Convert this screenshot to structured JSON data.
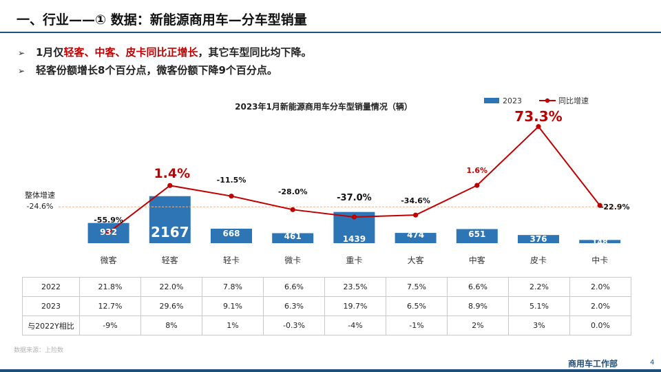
{
  "slide": {
    "title": "一、行业——① 数据：新能源商用车—分车型销量",
    "bullets": [
      [
        {
          "text": "1月仅",
          "red": false
        },
        {
          "text": "轻客、中客、皮卡同比正增长",
          "red": true
        },
        {
          "text": "，其它车型同比均下降。",
          "red": false
        }
      ],
      [
        {
          "text": "轻客份额增长8个百分点，微客份额下降9个百分点。",
          "red": false
        }
      ]
    ],
    "source": "数据来源：上险数",
    "footer": "商用车工作部",
    "page_number": "4"
  },
  "colors": {
    "bar": "#2e75b6",
    "line": "#c00000",
    "reference_line": "#f4b183",
    "title_rule": "#1f4e79"
  },
  "chart_data": {
    "type": "bar",
    "title": "2023年1月新能源商用车分车型销量情况（辆）",
    "categories": [
      "微客",
      "轻客",
      "轻卡",
      "微卡",
      "重卡",
      "大客",
      "中客",
      "皮卡",
      "中卡"
    ],
    "series": [
      {
        "name": "2023",
        "type": "bar",
        "values": [
          932,
          2167,
          668,
          461,
          1439,
          474,
          651,
          376,
          148
        ]
      },
      {
        "name": "同比增速",
        "type": "line",
        "values": [
          -55.9,
          1.4,
          -11.5,
          -28.0,
          -37.0,
          -34.6,
          1.6,
          73.3,
          -22.9
        ],
        "labels": [
          "-55.9%",
          "1.4%",
          "-11.5%",
          "-28.0%",
          "-37.0%",
          "-34.6%",
          "1.6%",
          "73.3%",
          "-22.9%"
        ]
      }
    ],
    "reference_line": {
      "label": "整体增速",
      "value": -24.6,
      "value_label": "-24.6%"
    },
    "legend_position": "top-right",
    "grid": false
  },
  "table": {
    "rows": [
      {
        "label": "2022",
        "values": [
          "21.8%",
          "22.0%",
          "7.8%",
          "6.6%",
          "23.5%",
          "7.5%",
          "6.6%",
          "2.2%",
          "2.0%"
        ]
      },
      {
        "label": "2023",
        "values": [
          "12.7%",
          "29.6%",
          "9.1%",
          "6.3%",
          "19.7%",
          "6.5%",
          "8.9%",
          "5.1%",
          "2.0%"
        ]
      },
      {
        "label": "与2022Y相比",
        "values": [
          "-9%",
          "8%",
          "1%",
          "-0.3%",
          "-4%",
          "-1%",
          "2%",
          "3%",
          "0.0%"
        ]
      }
    ]
  }
}
